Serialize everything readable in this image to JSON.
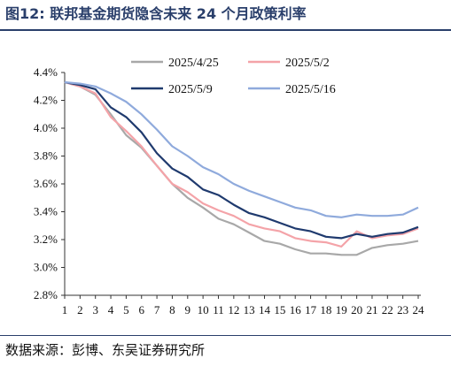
{
  "figure": {
    "title": "图12:   联邦基金期货隐含未来 24 个月政策利率",
    "source": "数据来源：彭博、东吴证券研究所"
  },
  "colors": {
    "title": "#2a3f6b",
    "s1": "#a8a8a8",
    "s2": "#f4a3a8",
    "s3": "#1f3a6e",
    "s4": "#8faadc"
  },
  "chart_data": {
    "type": "line",
    "title": "",
    "xlabel": "",
    "ylabel": "",
    "x": [
      1,
      2,
      3,
      4,
      5,
      6,
      7,
      8,
      9,
      10,
      11,
      12,
      13,
      14,
      15,
      16,
      17,
      18,
      19,
      20,
      21,
      22,
      23,
      24
    ],
    "ylim": [
      2.8,
      4.4
    ],
    "yticks": [
      "4.4%",
      "4.2%",
      "4.0%",
      "3.8%",
      "3.6%",
      "3.4%",
      "3.2%",
      "3.0%",
      "2.8%"
    ],
    "ytick_values": [
      4.4,
      4.2,
      4.0,
      3.8,
      3.6,
      3.4,
      3.2,
      3.0,
      2.8
    ],
    "grid": false,
    "legend": "top",
    "series": [
      {
        "name": "2025/4/25",
        "color": "#a8a8a8",
        "values": [
          4.33,
          4.3,
          4.24,
          4.1,
          3.95,
          3.86,
          3.73,
          3.6,
          3.5,
          3.43,
          3.35,
          3.31,
          3.25,
          3.19,
          3.17,
          3.13,
          3.1,
          3.1,
          3.09,
          3.09,
          3.14,
          3.16,
          3.17,
          3.19
        ]
      },
      {
        "name": "2025/5/2",
        "color": "#f4a3a8",
        "values": [
          4.33,
          4.3,
          4.25,
          4.08,
          3.98,
          3.87,
          3.73,
          3.6,
          3.54,
          3.46,
          3.41,
          3.37,
          3.31,
          3.28,
          3.26,
          3.21,
          3.19,
          3.18,
          3.15,
          3.26,
          3.21,
          3.23,
          3.24,
          3.28
        ]
      },
      {
        "name": "2025/5/9",
        "color": "#1f3a6e",
        "values": [
          4.33,
          4.31,
          4.28,
          4.15,
          4.08,
          3.97,
          3.82,
          3.71,
          3.65,
          3.56,
          3.52,
          3.45,
          3.39,
          3.36,
          3.32,
          3.28,
          3.26,
          3.22,
          3.21,
          3.24,
          3.22,
          3.24,
          3.25,
          3.29
        ]
      },
      {
        "name": "2025/5/16",
        "color": "#8faadc",
        "values": [
          4.33,
          4.32,
          4.3,
          4.25,
          4.19,
          4.1,
          3.99,
          3.87,
          3.8,
          3.72,
          3.67,
          3.6,
          3.55,
          3.51,
          3.47,
          3.43,
          3.41,
          3.37,
          3.36,
          3.38,
          3.37,
          3.37,
          3.38,
          3.43
        ]
      }
    ]
  }
}
